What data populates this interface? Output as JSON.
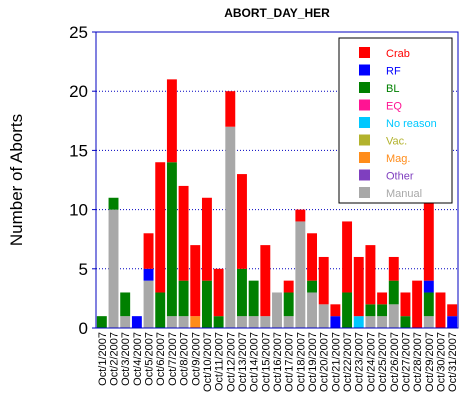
{
  "chart_data": {
    "type": "bar",
    "stacked": true,
    "title": "ABORT_DAY_HER",
    "xlabel": "",
    "ylabel": "Number of Aborts",
    "ylim": [
      0,
      25
    ],
    "yticks": [
      0,
      5,
      10,
      15,
      20,
      25
    ],
    "grid": "horizontal-dotted",
    "legend_position": "top-right",
    "categories": [
      "Oct/1/2007",
      "Oct/2/2007",
      "Oct/3/2007",
      "Oct/4/2007",
      "Oct/5/2007",
      "Oct/6/2007",
      "Oct/7/2007",
      "Oct/8/2007",
      "Oct/9/2007",
      "Oct/10/2007",
      "Oct/11/2007",
      "Oct/12/2007",
      "Oct/13/2007",
      "Oct/14/2007",
      "Oct/15/2007",
      "Oct/16/2007",
      "Oct/17/2007",
      "Oct/18/2007",
      "Oct/19/2007",
      "Oct/20/2007",
      "Oct/21/2007",
      "Oct/22/2007",
      "Oct/23/2007",
      "Oct/24/2007",
      "Oct/25/2007",
      "Oct/26/2007",
      "Oct/27/2007",
      "Oct/28/2007",
      "Oct/29/2007",
      "Oct/30/2007",
      "Oct/31/2007"
    ],
    "series": [
      {
        "name": "Manual",
        "color": "#a8a8a8",
        "values": [
          0,
          10,
          1,
          0,
          4,
          0,
          1,
          1,
          0,
          0,
          0,
          17,
          1,
          1,
          1,
          3,
          1,
          9,
          3,
          2,
          0,
          0,
          0,
          1,
          1,
          2,
          0,
          0,
          1,
          0,
          0
        ]
      },
      {
        "name": "Other",
        "color": "#7f3fbf",
        "values": [
          0,
          0,
          0,
          0,
          0,
          0,
          0,
          0,
          0,
          0,
          0,
          0,
          0,
          0,
          0,
          0,
          0,
          0,
          0,
          0,
          0,
          0,
          0,
          0,
          0,
          0,
          0,
          0,
          0,
          0,
          0
        ]
      },
      {
        "name": "Mag.",
        "color": "#ff8c1a",
        "values": [
          0,
          0,
          0,
          0,
          0,
          0,
          0,
          0,
          1,
          0,
          0,
          0,
          0,
          0,
          0,
          0,
          0,
          0,
          0,
          0,
          0,
          0,
          0,
          0,
          0,
          0,
          0,
          0,
          0,
          0,
          0
        ]
      },
      {
        "name": "Vac.",
        "color": "#b2b22c",
        "values": [
          0,
          0,
          0,
          0,
          0,
          0,
          0,
          0,
          0,
          0,
          0,
          0,
          0,
          0,
          0,
          0,
          0,
          0,
          0,
          0,
          0,
          0,
          0,
          0,
          0,
          0,
          0,
          0,
          0,
          0,
          0
        ]
      },
      {
        "name": "No reason",
        "color": "#00c8ff",
        "values": [
          0,
          0,
          0,
          0,
          0,
          0,
          0,
          0,
          0,
          0,
          0,
          0,
          0,
          0,
          0,
          0,
          0,
          0,
          0,
          0,
          0,
          0,
          1,
          0,
          0,
          0,
          0,
          0,
          0,
          0,
          0
        ]
      },
      {
        "name": "EQ",
        "color": "#ff1493",
        "values": [
          0,
          0,
          0,
          0,
          0,
          0,
          0,
          0,
          0,
          0,
          0,
          0,
          0,
          0,
          0,
          0,
          0,
          0,
          0,
          0,
          0,
          0,
          0,
          0,
          0,
          0,
          0,
          0,
          0,
          0,
          0
        ]
      },
      {
        "name": "BL",
        "color": "#008000",
        "values": [
          1,
          1,
          2,
          0,
          0,
          3,
          13,
          3,
          0,
          4,
          1,
          0,
          4,
          3,
          0,
          0,
          2,
          0,
          1,
          0,
          0,
          3,
          0,
          1,
          1,
          2,
          1,
          0,
          2,
          0,
          0
        ]
      },
      {
        "name": "RF",
        "color": "#0000ff",
        "values": [
          0,
          0,
          0,
          1,
          1,
          0,
          0,
          0,
          0,
          0,
          0,
          0,
          0,
          0,
          0,
          0,
          0,
          0,
          0,
          0,
          1,
          0,
          0,
          0,
          0,
          0,
          0,
          0,
          1,
          0,
          1
        ]
      },
      {
        "name": "Crab",
        "color": "#ff0000",
        "values": [
          0,
          0,
          0,
          0,
          3,
          11,
          7,
          8,
          6,
          7,
          4,
          3,
          8,
          0,
          6,
          0,
          1,
          1,
          4,
          4,
          1,
          6,
          5,
          5,
          1,
          2,
          2,
          4,
          7,
          3,
          1
        ]
      }
    ],
    "legend_order": [
      "Crab",
      "RF",
      "BL",
      "EQ",
      "No reason",
      "Vac.",
      "Mag.",
      "Other",
      "Manual"
    ]
  }
}
